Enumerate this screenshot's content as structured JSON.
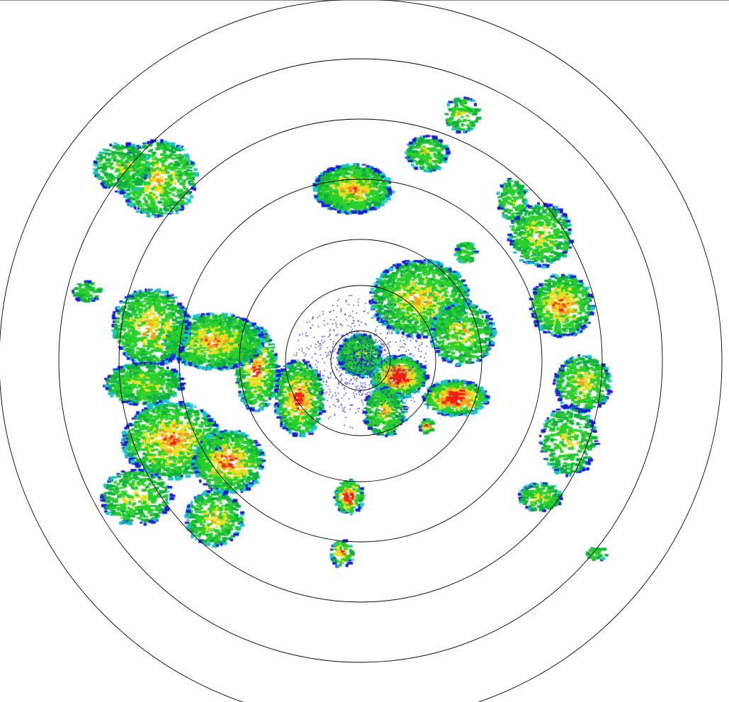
{
  "radar": {
    "reflectivity_colors": [
      "#1a1adc",
      "#18c8c8",
      "#10b040",
      "#2ad02a",
      "#e8e020",
      "#f0a020",
      "#f02010"
    ],
    "range_ring_count": 7,
    "ring_color": "#000000",
    "background": "#ffffff"
  }
}
